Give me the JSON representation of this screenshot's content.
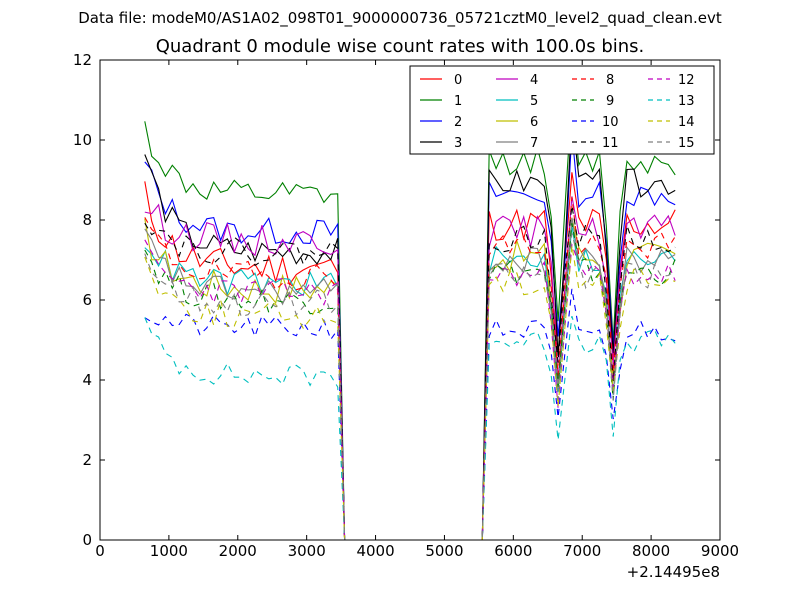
{
  "figure": {
    "suptitle": "Data file: modeM0/AS1A02_098T01_9000000736_05721cztM0_level2_quad_clean.evt",
    "title": "Quadrant 0 module wise count rates with 100.0s bins."
  },
  "chart_data": {
    "type": "line",
    "title": "Quadrant 0 module wise count rates with 100.0s bins.",
    "xlabel": "",
    "ylabel": "",
    "x_offset_label": "+2.14495e8",
    "xlim": [
      0,
      9000
    ],
    "ylim": [
      0,
      12
    ],
    "xticks": [
      0,
      1000,
      2000,
      3000,
      4000,
      5000,
      6000,
      7000,
      8000,
      9000
    ],
    "yticks": [
      0,
      2,
      4,
      6,
      8,
      10,
      12
    ],
    "grid": false,
    "legend": {
      "position": "top-right",
      "columns": 4
    },
    "segments": [
      {
        "x_start": 650,
        "x_end": 3450,
        "step": 100
      },
      {
        "gap": [
          3550,
          5550
        ],
        "value": 0
      },
      {
        "x_start": 5650,
        "x_end": 8350,
        "step": 100
      }
    ],
    "series": [
      {
        "name": "0",
        "color": "#ff0000",
        "dash": "solid",
        "level": 6.8,
        "onset": 8.6,
        "jitter": 0.45,
        "seed": 11
      },
      {
        "name": "1",
        "color": "#008000",
        "dash": "solid",
        "level": 8.6,
        "onset": 10.3,
        "jitter": 0.35,
        "seed": 12
      },
      {
        "name": "2",
        "color": "#0000ff",
        "dash": "solid",
        "level": 7.7,
        "onset": 9.4,
        "jitter": 0.35,
        "seed": 13
      },
      {
        "name": "3",
        "color": "#000000",
        "dash": "solid",
        "level": 7.2,
        "onset": 9.7,
        "jitter": 0.35,
        "seed": 14
      },
      {
        "name": "4",
        "color": "#bf00bf",
        "dash": "solid",
        "level": 7.5,
        "onset": 8.4,
        "jitter": 0.4,
        "seed": 15
      },
      {
        "name": "5",
        "color": "#00bfbf",
        "dash": "solid",
        "level": 6.4,
        "onset": 7.6,
        "jitter": 0.35,
        "seed": 16
      },
      {
        "name": "6",
        "color": "#bfbf00",
        "dash": "solid",
        "level": 6.3,
        "onset": 7.7,
        "jitter": 0.4,
        "seed": 17
      },
      {
        "name": "7",
        "color": "#808080",
        "dash": "solid",
        "level": 6.2,
        "onset": 7.6,
        "jitter": 0.35,
        "seed": 18
      },
      {
        "name": "8",
        "color": "#ff0000",
        "dash": "dashed",
        "level": 6.6,
        "onset": 8.0,
        "jitter": 0.35,
        "seed": 19
      },
      {
        "name": "9",
        "color": "#008000",
        "dash": "dashed",
        "level": 6.0,
        "onset": 7.3,
        "jitter": 0.35,
        "seed": 20
      },
      {
        "name": "10",
        "color": "#0000ff",
        "dash": "dashed",
        "level": 5.3,
        "onset": 5.7,
        "jitter": 0.3,
        "seed": 21
      },
      {
        "name": "11",
        "color": "#000000",
        "dash": "dashed",
        "level": 7.2,
        "onset": 8.2,
        "jitter": 0.35,
        "seed": 22
      },
      {
        "name": "12",
        "color": "#bf00bf",
        "dash": "dashed",
        "level": 6.2,
        "onset": 7.2,
        "jitter": 0.35,
        "seed": 23
      },
      {
        "name": "13",
        "color": "#00bfbf",
        "dash": "dashed",
        "level": 4.1,
        "onset": 5.4,
        "jitter": 0.3,
        "seed": 24
      },
      {
        "name": "14",
        "color": "#bfbf00",
        "dash": "dashed",
        "level": 5.6,
        "onset": 7.0,
        "jitter": 0.35,
        "seed": 25
      },
      {
        "name": "15",
        "color": "#808080",
        "dash": "dashed",
        "level": 5.9,
        "onset": 7.2,
        "jitter": 0.35,
        "seed": 26
      }
    ],
    "dips": [
      {
        "x": 6650,
        "depth": 0.55
      },
      {
        "x": 7450,
        "depth": 0.55
      }
    ],
    "peaks": [
      {
        "x": 6850,
        "boost": 1.15
      }
    ]
  }
}
